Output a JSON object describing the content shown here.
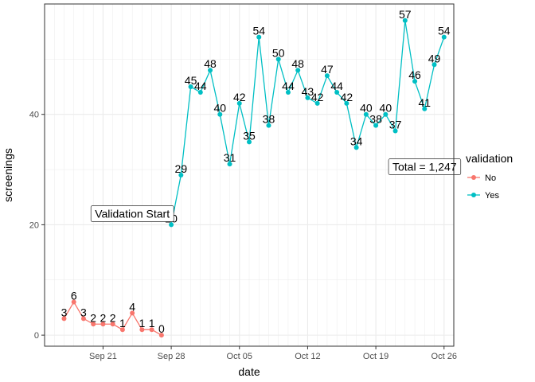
{
  "chart_data": {
    "type": "line",
    "xlabel": "date",
    "ylabel": "screenings",
    "x_axis_type": "date",
    "xlim": [
      "2016-09-15",
      "2016-10-27"
    ],
    "ylim": [
      -2,
      60
    ],
    "x_tick_dates": [
      "2016-09-21",
      "2016-09-28",
      "2016-10-05",
      "2016-10-12",
      "2016-10-19",
      "2016-10-26"
    ],
    "x_tick_labels": [
      "Sep 21",
      "Sep 28",
      "Oct 05",
      "Oct 12",
      "Oct 19",
      "Oct 26"
    ],
    "y_ticks": [
      0,
      20,
      40
    ],
    "y_tick_labels": [
      "0",
      "20",
      "40"
    ],
    "grid": true,
    "legend": {
      "title": "validation",
      "position": "right",
      "entries": [
        {
          "label": "No",
          "color": "#F8766D"
        },
        {
          "label": "Yes",
          "color": "#00BFC4"
        }
      ]
    },
    "series": [
      {
        "name": "No",
        "color": "#F8766D",
        "x": [
          "2016-09-17",
          "2016-09-18",
          "2016-09-19",
          "2016-09-20",
          "2016-09-21",
          "2016-09-22",
          "2016-09-23",
          "2016-09-24",
          "2016-09-25",
          "2016-09-26",
          "2016-09-27"
        ],
        "values": [
          3,
          6,
          3,
          2,
          2,
          2,
          1,
          4,
          1,
          1,
          0
        ]
      },
      {
        "name": "Yes",
        "color": "#00BFC4",
        "x": [
          "2016-09-28",
          "2016-09-29",
          "2016-09-30",
          "2016-10-01",
          "2016-10-02",
          "2016-10-03",
          "2016-10-04",
          "2016-10-05",
          "2016-10-06",
          "2016-10-07",
          "2016-10-08",
          "2016-10-09",
          "2016-10-10",
          "2016-10-11",
          "2016-10-12",
          "2016-10-13",
          "2016-10-14",
          "2016-10-15",
          "2016-10-16",
          "2016-10-17",
          "2016-10-18",
          "2016-10-19",
          "2016-10-20",
          "2016-10-21",
          "2016-10-22",
          "2016-10-23",
          "2016-10-24",
          "2016-10-25",
          "2016-10-26"
        ],
        "values": [
          20,
          29,
          45,
          44,
          48,
          40,
          31,
          42,
          35,
          54,
          38,
          50,
          44,
          48,
          43,
          42,
          47,
          44,
          42,
          34,
          40,
          38,
          40,
          37,
          57,
          46,
          41,
          49,
          54
        ]
      }
    ],
    "annotations": [
      {
        "text": "Validation Start",
        "x": "2016-09-24",
        "y": 22
      },
      {
        "text": "Total = 1,247",
        "x": "2016-10-24",
        "y": 30.5
      }
    ]
  }
}
